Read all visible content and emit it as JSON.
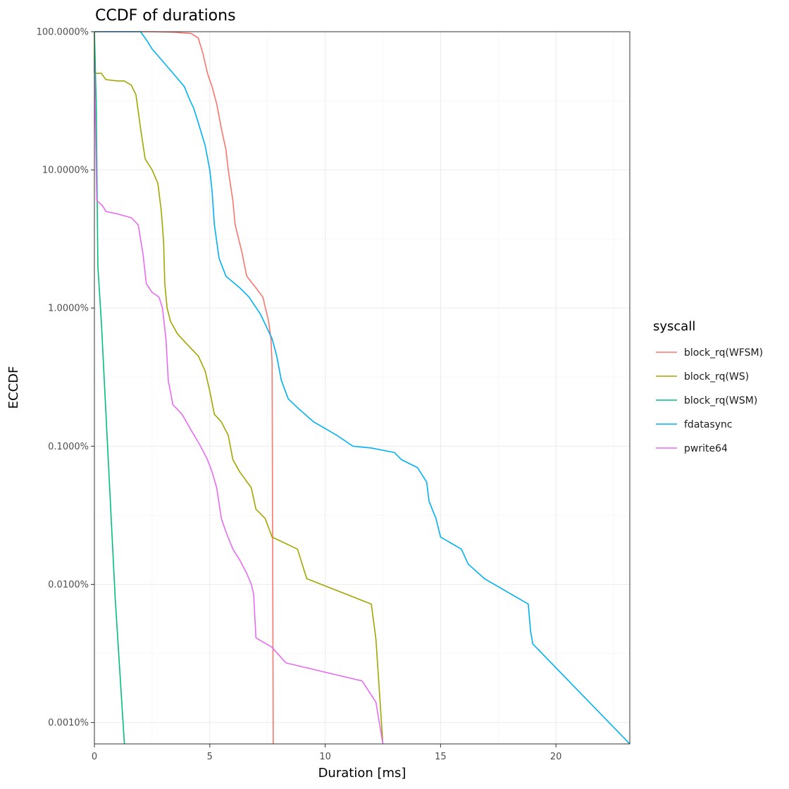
{
  "chart_data": {
    "type": "line",
    "title": "CCDF of durations",
    "xlabel": "Duration [ms]",
    "ylabel": "ECCDF",
    "x_scale": "linear",
    "y_scale": "log10",
    "xlim": [
      0,
      23.2
    ],
    "ylim": [
      0.0007,
      100
    ],
    "x_ticks": [
      0,
      5,
      10,
      15,
      20
    ],
    "x_tick_labels": [
      "0",
      "5",
      "10",
      "15",
      "20"
    ],
    "y_ticks": [
      0.001,
      0.01,
      0.1,
      1,
      10,
      100
    ],
    "y_tick_labels": [
      "0.0010%",
      "0.0100%",
      "0.1000%",
      "1.0000%",
      "10.0000%",
      "100.0000%"
    ],
    "grid": true,
    "legend": {
      "title": "syscall",
      "position": "right"
    },
    "series": [
      {
        "name": "block_rq(WFSM)",
        "color": "#F8766D",
        "points": [
          [
            0,
            100
          ],
          [
            2.5,
            100
          ],
          [
            3.5,
            99
          ],
          [
            4.2,
            97
          ],
          [
            4.5,
            90
          ],
          [
            4.7,
            70
          ],
          [
            4.9,
            50
          ],
          [
            5.1,
            40
          ],
          [
            5.3,
            30
          ],
          [
            5.5,
            20
          ],
          [
            5.7,
            14
          ],
          [
            5.8,
            10
          ],
          [
            6.0,
            6
          ],
          [
            6.1,
            4
          ],
          [
            6.4,
            2.5
          ],
          [
            6.6,
            1.7
          ],
          [
            7.0,
            1.4
          ],
          [
            7.3,
            1.2
          ],
          [
            7.55,
            0.8
          ],
          [
            7.65,
            0.6
          ],
          [
            7.7,
            0.4
          ],
          [
            7.75,
            0.0007
          ]
        ]
      },
      {
        "name": "block_rq(WS)",
        "color": "#A3A500",
        "points": [
          [
            0,
            100
          ],
          [
            0,
            50
          ],
          [
            0.3,
            50
          ],
          [
            0.5,
            45
          ],
          [
            1.0,
            44
          ],
          [
            1.3,
            44
          ],
          [
            1.6,
            41
          ],
          [
            1.8,
            35
          ],
          [
            2.0,
            20
          ],
          [
            2.2,
            12
          ],
          [
            2.5,
            10
          ],
          [
            2.75,
            8
          ],
          [
            2.9,
            5
          ],
          [
            3.0,
            3
          ],
          [
            3.05,
            1.5
          ],
          [
            3.15,
            1.0
          ],
          [
            3.3,
            0.8
          ],
          [
            3.6,
            0.65
          ],
          [
            4.0,
            0.55
          ],
          [
            4.5,
            0.45
          ],
          [
            4.8,
            0.35
          ],
          [
            5.0,
            0.25
          ],
          [
            5.2,
            0.17
          ],
          [
            5.5,
            0.15
          ],
          [
            5.8,
            0.12
          ],
          [
            6.0,
            0.08
          ],
          [
            6.3,
            0.065
          ],
          [
            6.8,
            0.05
          ],
          [
            7.0,
            0.035
          ],
          [
            7.4,
            0.03
          ],
          [
            7.7,
            0.022
          ],
          [
            8.8,
            0.018
          ],
          [
            9.2,
            0.011
          ],
          [
            12.0,
            0.0072
          ],
          [
            12.2,
            0.004
          ],
          [
            12.5,
            0.0007
          ]
        ]
      },
      {
        "name": "block_rq(WSM)",
        "color": "#00BF7D",
        "points": [
          [
            0,
            100
          ],
          [
            0.08,
            30
          ],
          [
            0.15,
            2
          ],
          [
            0.3,
            0.8
          ],
          [
            0.6,
            0.08
          ],
          [
            0.9,
            0.008
          ],
          [
            1.3,
            0.0007
          ]
        ]
      },
      {
        "name": "fdatasync",
        "color": "#00B0F6",
        "points": [
          [
            0,
            100
          ],
          [
            2.0,
            100
          ],
          [
            2.3,
            85
          ],
          [
            2.5,
            75
          ],
          [
            3.0,
            60
          ],
          [
            3.5,
            48
          ],
          [
            3.9,
            40
          ],
          [
            4.1,
            33
          ],
          [
            4.3,
            28
          ],
          [
            4.5,
            22
          ],
          [
            4.8,
            15
          ],
          [
            5.0,
            10
          ],
          [
            5.1,
            7
          ],
          [
            5.2,
            4
          ],
          [
            5.4,
            2.3
          ],
          [
            5.7,
            1.7
          ],
          [
            6.3,
            1.4
          ],
          [
            6.7,
            1.2
          ],
          [
            7.2,
            0.9
          ],
          [
            7.7,
            0.6
          ],
          [
            7.9,
            0.45
          ],
          [
            8.1,
            0.3
          ],
          [
            8.4,
            0.22
          ],
          [
            8.8,
            0.19
          ],
          [
            9.5,
            0.15
          ],
          [
            10.5,
            0.12
          ],
          [
            11.2,
            0.1
          ],
          [
            12.0,
            0.097
          ],
          [
            13.0,
            0.09
          ],
          [
            13.3,
            0.08
          ],
          [
            14.0,
            0.07
          ],
          [
            14.4,
            0.055
          ],
          [
            14.5,
            0.04
          ],
          [
            14.8,
            0.03
          ],
          [
            15.0,
            0.022
          ],
          [
            15.9,
            0.018
          ],
          [
            16.2,
            0.014
          ],
          [
            16.9,
            0.011
          ],
          [
            18.8,
            0.0072
          ],
          [
            18.9,
            0.0046
          ],
          [
            19.0,
            0.0037
          ],
          [
            23.2,
            0.0007
          ]
        ]
      },
      {
        "name": "pwrite64",
        "color": "#E76BF3",
        "points": [
          [
            0,
            60
          ],
          [
            0.1,
            6
          ],
          [
            0.35,
            5.5
          ],
          [
            0.5,
            5
          ],
          [
            1.0,
            4.8
          ],
          [
            1.6,
            4.5
          ],
          [
            1.9,
            4
          ],
          [
            2.1,
            2.5
          ],
          [
            2.25,
            1.5
          ],
          [
            2.5,
            1.3
          ],
          [
            2.8,
            1.2
          ],
          [
            2.95,
            1.0
          ],
          [
            3.1,
            0.6
          ],
          [
            3.2,
            0.3
          ],
          [
            3.4,
            0.2
          ],
          [
            3.8,
            0.17
          ],
          [
            4.2,
            0.13
          ],
          [
            4.6,
            0.1
          ],
          [
            4.9,
            0.08
          ],
          [
            5.1,
            0.065
          ],
          [
            5.3,
            0.05
          ],
          [
            5.5,
            0.03
          ],
          [
            5.7,
            0.024
          ],
          [
            6.0,
            0.018
          ],
          [
            6.3,
            0.015
          ],
          [
            6.6,
            0.012
          ],
          [
            6.8,
            0.01
          ],
          [
            6.9,
            0.0085
          ],
          [
            7.0,
            0.0041
          ],
          [
            7.7,
            0.0035
          ],
          [
            8.3,
            0.0027
          ],
          [
            11.6,
            0.002
          ],
          [
            12.2,
            0.0014
          ],
          [
            12.5,
            0.0007
          ]
        ]
      }
    ]
  }
}
